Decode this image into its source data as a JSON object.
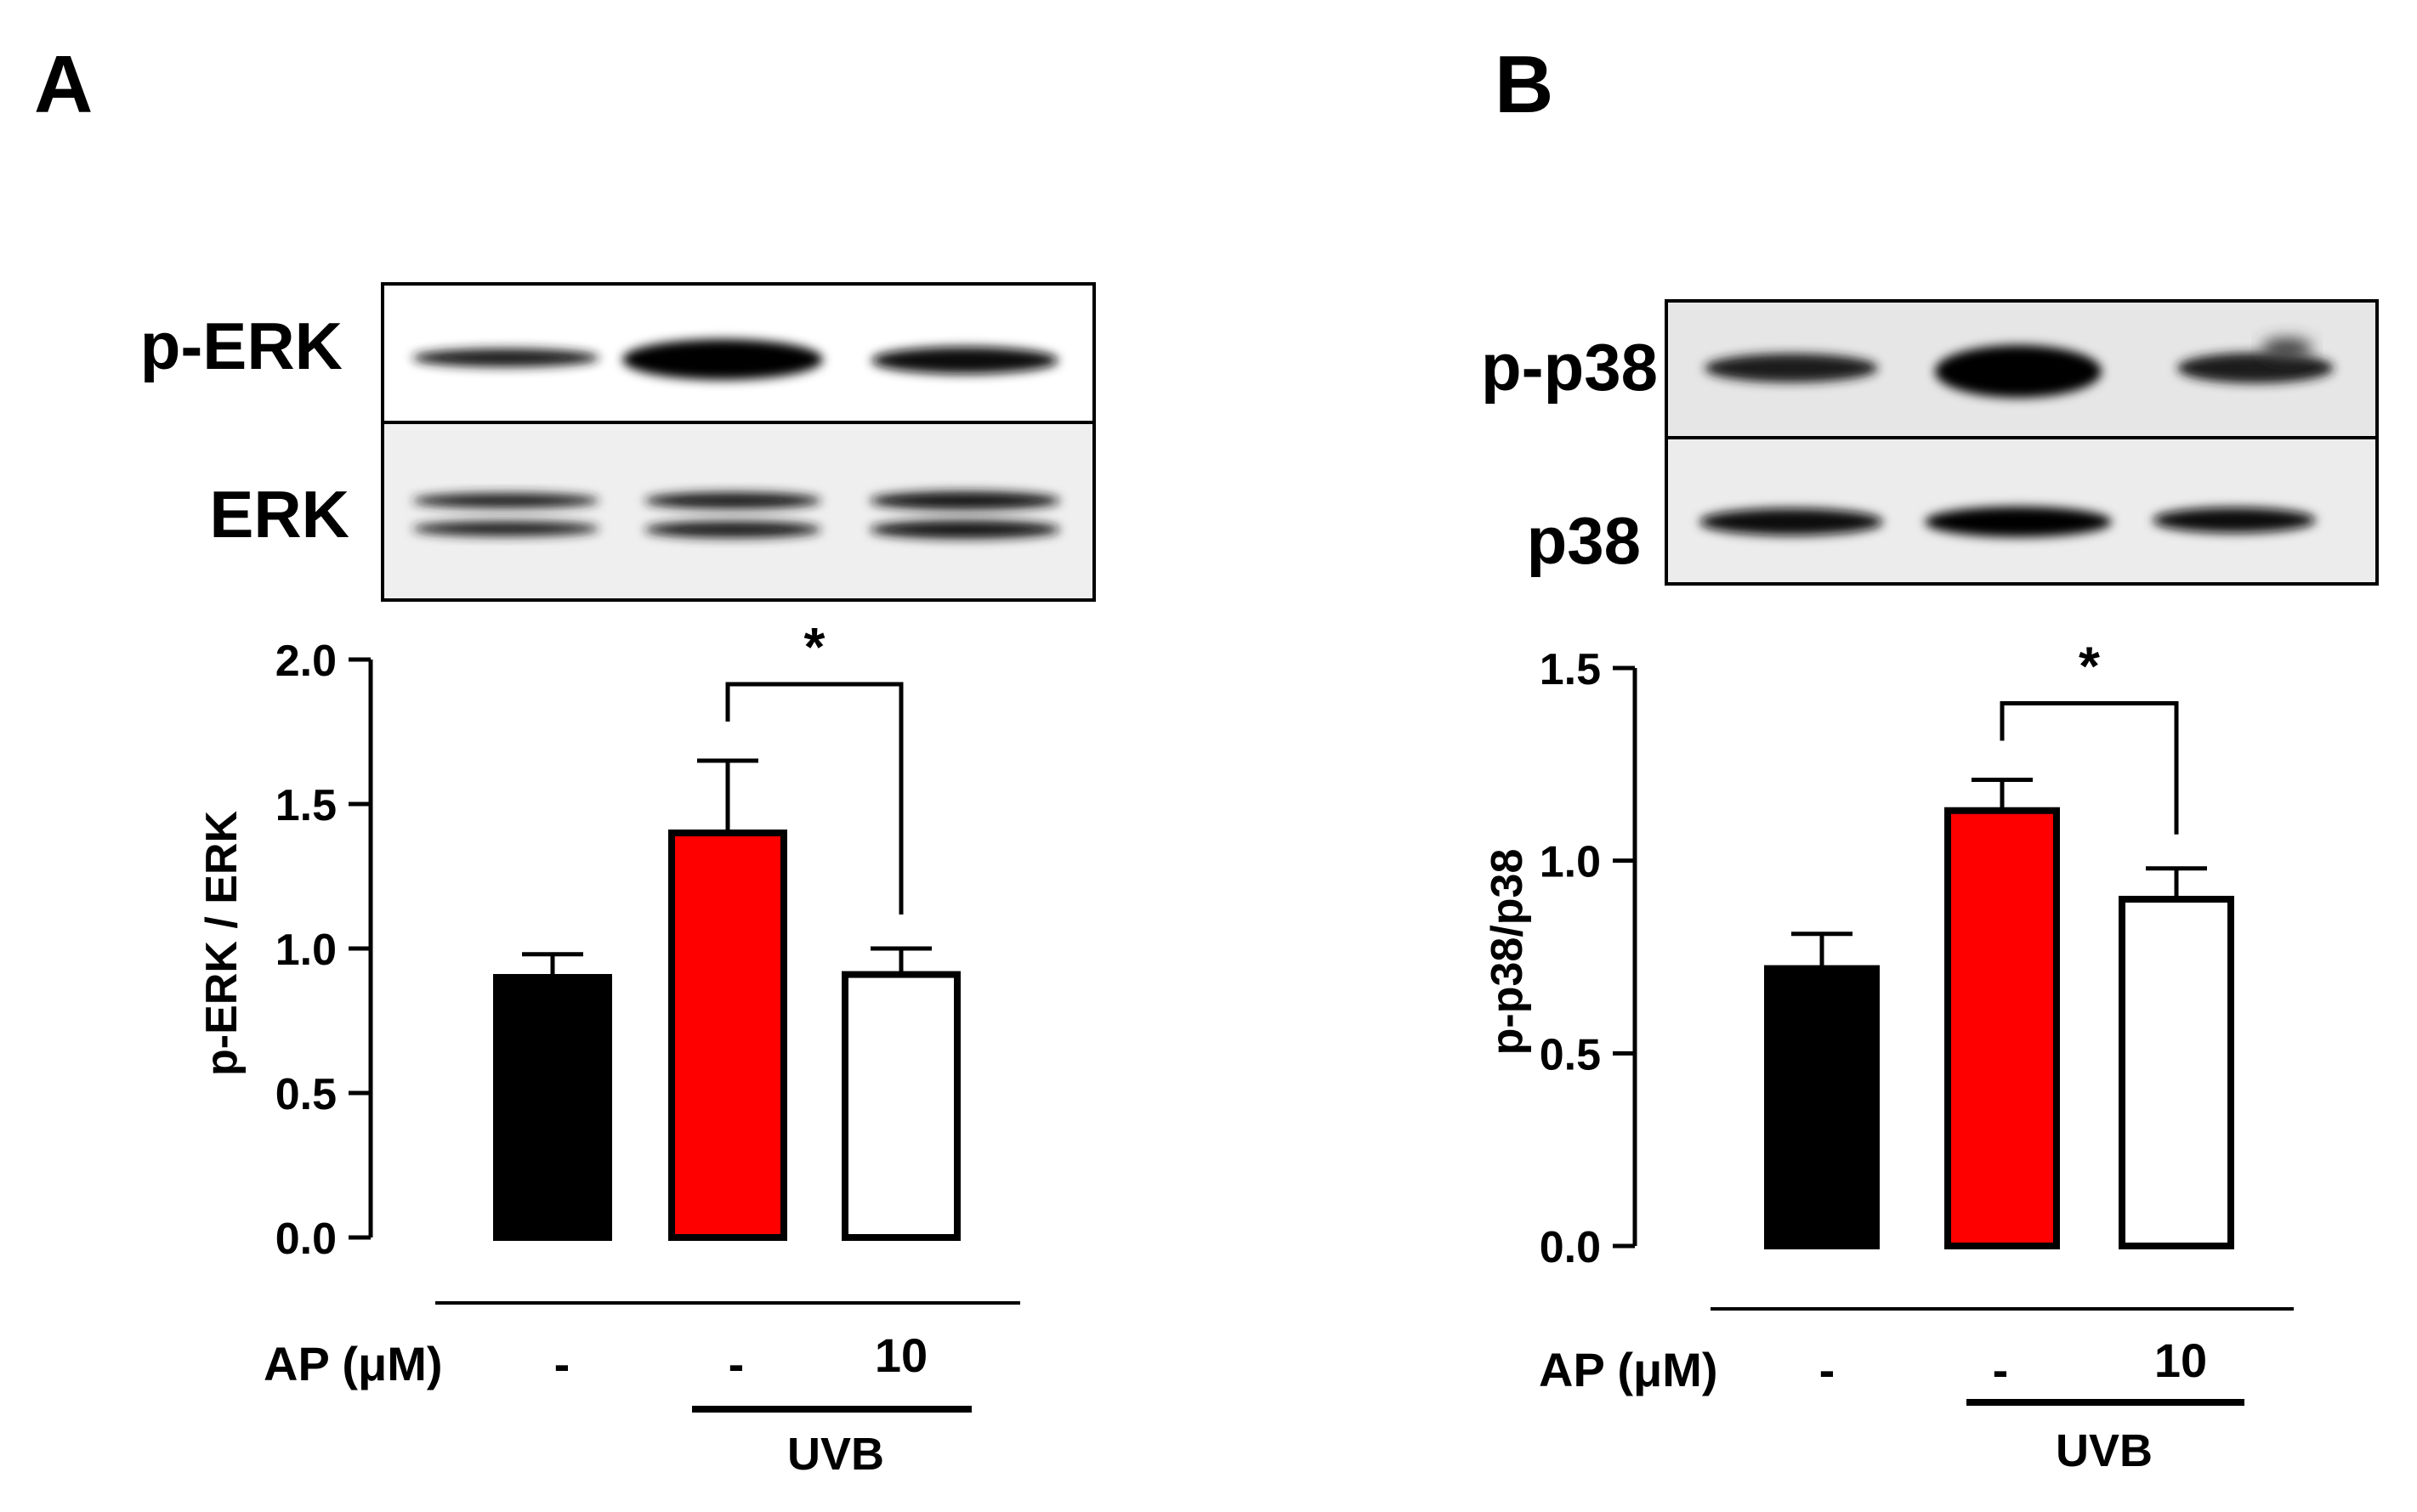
{
  "figure": {
    "panels": [
      {
        "id": "A",
        "letter": "A",
        "blot_top_label": "p-ERK",
        "blot_bottom_label": "ERK",
        "treatment_label": "AP (μM)",
        "treatment_values": [
          "-",
          "-",
          "10"
        ],
        "group_label": "UVB",
        "significance": "*"
      },
      {
        "id": "B",
        "letter": "B",
        "blot_top_label": "p-p38",
        "blot_bottom_label": "p38",
        "treatment_label": "AP (μM)",
        "treatment_values": [
          "-",
          "-",
          "10"
        ],
        "group_label": "UVB",
        "significance": "*"
      }
    ]
  },
  "chart_data": [
    {
      "type": "bar",
      "panel": "A",
      "title": "",
      "ylabel": "p-ERK / ERK",
      "xlabel": "",
      "ylim": [
        0,
        2.0
      ],
      "yticks": [
        0.0,
        0.5,
        1.0,
        1.5,
        2.0
      ],
      "ytick_labels": [
        "0.0",
        "0.5",
        "1.0",
        "1.5",
        "2.0"
      ],
      "categories": [
        "-",
        "-",
        "10"
      ],
      "values": [
        0.9,
        1.4,
        0.91
      ],
      "errors": [
        0.08,
        0.25,
        0.09
      ],
      "bar_fills": [
        "#000000",
        "#ff0000",
        "#ffffff"
      ],
      "significance": {
        "from": 1,
        "to": 2,
        "label": "*"
      },
      "grid": false
    },
    {
      "type": "bar",
      "panel": "B",
      "title": "",
      "ylabel": "p-p38/p38",
      "xlabel": "",
      "ylim": [
        0,
        1.5
      ],
      "yticks": [
        0.0,
        0.5,
        1.0,
        1.5
      ],
      "ytick_labels": [
        "0.0",
        "0.5",
        "1.0",
        "1.5"
      ],
      "categories": [
        "-",
        "-",
        "10"
      ],
      "values": [
        0.72,
        1.13,
        0.9
      ],
      "errors": [
        0.09,
        0.08,
        0.08
      ],
      "bar_fills": [
        "#000000",
        "#ff0000",
        "#ffffff"
      ],
      "significance": {
        "from": 1,
        "to": 2,
        "label": "*"
      },
      "grid": false
    }
  ]
}
